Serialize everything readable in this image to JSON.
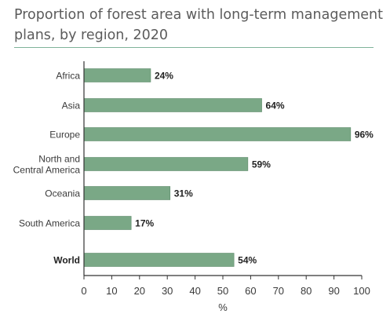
{
  "chart_data": {
    "type": "bar",
    "orientation": "horizontal",
    "title": "Proportion of forest area with long-term management plans, by region, 2020",
    "categories": [
      "Africa",
      "Asia",
      "Europe",
      "North and Central America",
      "Oceania",
      "South America",
      "World"
    ],
    "category_lines": [
      [
        "Africa"
      ],
      [
        "Asia"
      ],
      [
        "Europe"
      ],
      [
        "North and",
        "Central America"
      ],
      [
        "Oceania"
      ],
      [
        "South America"
      ],
      [
        "World"
      ]
    ],
    "values": [
      24,
      64,
      96,
      59,
      31,
      17,
      54
    ],
    "value_labels": [
      "24%",
      "64%",
      "96%",
      "59%",
      "31%",
      "17%",
      "54%"
    ],
    "emphasized_category": "World",
    "xlabel": "%",
    "ylabel": "",
    "xlim": [
      0,
      100
    ],
    "xticks": [
      0,
      10,
      20,
      30,
      40,
      50,
      60,
      70,
      80,
      90,
      100
    ],
    "grid": false,
    "legend": "none",
    "bar_color": "#7aa886",
    "title_color": "#5b5b5b",
    "rule_color": "#7fb39a"
  }
}
